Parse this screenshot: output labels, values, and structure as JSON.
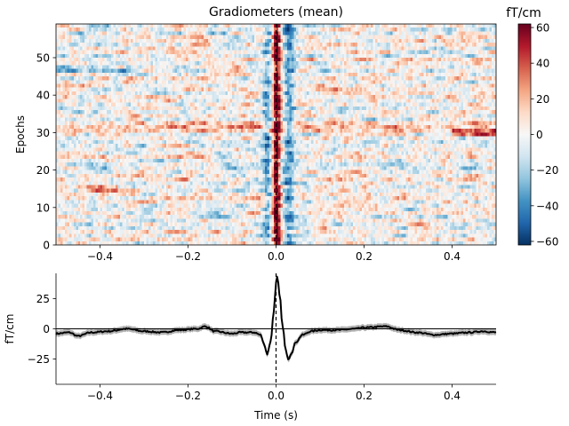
{
  "chart_data": [
    {
      "type": "heatmap",
      "title": "Gradiometers (mean)",
      "xlabel": "",
      "ylabel": "Epochs",
      "xlim": [
        -0.5,
        0.5
      ],
      "ylim": [
        0,
        59
      ],
      "xticks": [
        -0.4,
        -0.2,
        0.0,
        0.2,
        0.4
      ],
      "xtick_labels": [
        "−0.4",
        "−0.2",
        "0.0",
        "0.2",
        "0.4"
      ],
      "yticks": [
        0,
        10,
        20,
        30,
        40,
        50
      ],
      "ytick_labels": [
        "0",
        "10",
        "20",
        "30",
        "40",
        "50"
      ],
      "n_epochs": 59,
      "colormap": "RdBu_r",
      "colormap_stops": [
        "#053061",
        "#2166ac",
        "#4393c3",
        "#92c5de",
        "#d1e5f0",
        "#f7f7f7",
        "#fddbc7",
        "#f4a582",
        "#d6604d",
        "#b2182b",
        "#67001f"
      ],
      "vlim": [
        -62,
        62
      ],
      "event_line_x": 0.0,
      "colorbar": {
        "label": "fT/cm",
        "ticks": [
          -60,
          -40,
          -20,
          0,
          20,
          40,
          60
        ],
        "tick_labels": [
          "−60",
          "−40",
          "−20",
          "0",
          "20",
          "40",
          "60"
        ]
      }
    },
    {
      "type": "line",
      "xlabel": "Time (s)",
      "ylabel": "fT/cm",
      "xlim": [
        -0.5,
        0.5
      ],
      "ylim": [
        -46,
        46
      ],
      "xticks": [
        -0.4,
        -0.2,
        0.0,
        0.2,
        0.4
      ],
      "xtick_labels": [
        "−0.4",
        "−0.2",
        "0.0",
        "0.2",
        "0.4"
      ],
      "yticks": [
        -25,
        0,
        25
      ],
      "ytick_labels": [
        "−25",
        "0",
        "25"
      ],
      "hline_y": 0,
      "event_line_x": 0.0,
      "confidence_band_halfwidth": 2.5,
      "series": [
        {
          "color": "#000000",
          "x": [
            -0.5,
            -0.47,
            -0.45,
            -0.42,
            -0.38,
            -0.34,
            -0.3,
            -0.26,
            -0.22,
            -0.18,
            -0.16,
            -0.14,
            -0.1,
            -0.08,
            -0.05,
            -0.035,
            -0.028,
            -0.02,
            -0.012,
            -0.005,
            0.0,
            0.003,
            0.008,
            0.015,
            0.022,
            0.028,
            0.035,
            0.045,
            0.06,
            0.08,
            0.1,
            0.14,
            0.18,
            0.2,
            0.25,
            0.28,
            0.32,
            0.36,
            0.4,
            0.44,
            0.47,
            0.5
          ],
          "y": [
            -4,
            -3,
            -6,
            -3,
            -2,
            0,
            -2,
            -3,
            -1,
            0,
            2,
            -2,
            -4,
            -3,
            -3,
            -5,
            -12,
            -21,
            -10,
            15,
            38,
            43,
            28,
            2,
            -18,
            -25,
            -20,
            -11,
            -5,
            -2,
            -1,
            -1,
            0,
            1,
            2,
            -1,
            -3,
            -5,
            -4,
            -3,
            -2,
            -3
          ]
        }
      ]
    }
  ]
}
